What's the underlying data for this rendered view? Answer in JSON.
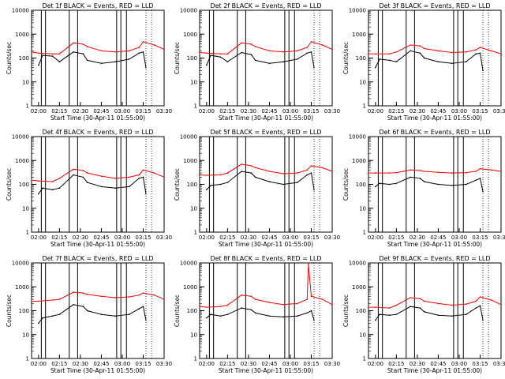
{
  "figure": {
    "background": "#ffffff",
    "events_color": "#000000",
    "lld_color": "#ff0000",
    "shared_x_label": "Start Time (30-Apr-11 01:55:00)",
    "shared_y_label": "Counts/sec"
  },
  "chart_data": [
    {
      "type": "line",
      "title": "Det 1f BLACK = Events, RED = LLD",
      "xlabel": "Start Time (30-Apr-11 01:55:00)",
      "ylabel": "Counts/sec",
      "x_tick_labels": [
        "02:00",
        "02:15",
        "02:30",
        "02:45",
        "03:00",
        "03:15",
        "03:30"
      ],
      "y_tick_labels": [
        "1",
        "10",
        "100",
        "1000",
        "10000"
      ],
      "xlim_minutes": [
        0,
        95
      ],
      "ylim": [
        1,
        10000
      ],
      "yscale": "log",
      "series": [
        {
          "name": "BLACK = Events",
          "x_minutes": [
            5,
            8,
            15,
            20,
            30,
            37,
            40,
            50,
            60,
            70,
            77,
            80,
            82
          ],
          "values": [
            50,
            130,
            120,
            70,
            180,
            150,
            80,
            60,
            70,
            90,
            160,
            180,
            40
          ]
        },
        {
          "name": "RED = LLD",
          "x_minutes": [
            0,
            5,
            15,
            20,
            30,
            37,
            40,
            50,
            60,
            70,
            77,
            80,
            88,
            95
          ],
          "values": [
            180,
            160,
            150,
            150,
            430,
            380,
            300,
            200,
            180,
            200,
            280,
            480,
            350,
            230
          ]
        }
      ],
      "vertical_lines_minutes": [
        7,
        10,
        27,
        33,
        61,
        64,
        68
      ]
    },
    {
      "type": "line",
      "title": "Det 2f BLACK = Events, RED = LLD",
      "xlabel": "Start Time (30-Apr-11 01:55:00)",
      "ylabel": "Counts/sec",
      "x_tick_labels": [
        "02:00",
        "02:15",
        "02:30",
        "02:45",
        "03:00",
        "03:15",
        "03:30"
      ],
      "y_tick_labels": [
        "1",
        "10",
        "100",
        "1000",
        "10000"
      ],
      "xlim_minutes": [
        0,
        95
      ],
      "ylim": [
        1,
        10000
      ],
      "yscale": "log",
      "series": [
        {
          "name": "BLACK = Events",
          "x_minutes": [
            5,
            8,
            15,
            20,
            30,
            37,
            40,
            50,
            60,
            70,
            77,
            80,
            82
          ],
          "values": [
            50,
            130,
            110,
            70,
            170,
            140,
            80,
            60,
            70,
            90,
            160,
            180,
            40
          ]
        },
        {
          "name": "RED = LLD",
          "x_minutes": [
            0,
            5,
            15,
            20,
            30,
            37,
            40,
            50,
            60,
            70,
            77,
            80,
            88,
            95
          ],
          "values": [
            170,
            160,
            150,
            150,
            430,
            380,
            300,
            200,
            180,
            200,
            280,
            480,
            350,
            230
          ]
        }
      ],
      "vertical_lines_minutes": [
        7,
        10,
        27,
        33,
        61,
        64,
        68
      ]
    },
    {
      "type": "line",
      "title": "Det 3f BLACK = Events, RED = LLD",
      "xlabel": "Start Time (30-Apr-11 01:55:00)",
      "ylabel": "Counts/sec",
      "x_tick_labels": [
        "02:00",
        "02:15",
        "02:30",
        "02:45",
        "03:00",
        "03:15",
        "03:30"
      ],
      "y_tick_labels": [
        "1",
        "10",
        "100",
        "1000",
        "10000"
      ],
      "xlim_minutes": [
        0,
        95
      ],
      "ylim": [
        1,
        10000
      ],
      "yscale": "log",
      "series": [
        {
          "name": "BLACK = Events",
          "x_minutes": [
            5,
            8,
            15,
            20,
            30,
            37,
            40,
            50,
            60,
            70,
            77,
            80,
            82
          ],
          "values": [
            40,
            90,
            80,
            70,
            200,
            160,
            100,
            70,
            60,
            70,
            150,
            160,
            30
          ]
        },
        {
          "name": "RED = LLD",
          "x_minutes": [
            0,
            5,
            15,
            20,
            30,
            37,
            40,
            50,
            60,
            70,
            77,
            80,
            88,
            95
          ],
          "values": [
            150,
            150,
            150,
            180,
            350,
            320,
            250,
            200,
            170,
            180,
            220,
            280,
            200,
            150
          ]
        }
      ],
      "vertical_lines_minutes": [
        7,
        10,
        27,
        33,
        61,
        64,
        68
      ]
    },
    {
      "type": "line",
      "title": "Det 4f BLACK = Events, RED = LLD",
      "xlabel": "Start Time (30-Apr-11 01:55:00)",
      "ylabel": "Counts/sec",
      "x_tick_labels": [
        "02:00",
        "02:15",
        "02:30",
        "02:45",
        "03:00",
        "03:15",
        "03:30"
      ],
      "y_tick_labels": [
        "1",
        "10",
        "100",
        "1000",
        "10000"
      ],
      "xlim_minutes": [
        0,
        95
      ],
      "ylim": [
        1,
        10000
      ],
      "yscale": "log",
      "series": [
        {
          "name": "BLACK = Events",
          "x_minutes": [
            5,
            8,
            15,
            20,
            30,
            37,
            40,
            50,
            60,
            70,
            77,
            80,
            82
          ],
          "values": [
            40,
            70,
            60,
            70,
            250,
            200,
            120,
            80,
            70,
            80,
            180,
            200,
            40
          ]
        },
        {
          "name": "RED = LLD",
          "x_minutes": [
            0,
            5,
            15,
            20,
            30,
            37,
            40,
            50,
            60,
            70,
            77,
            80,
            88,
            95
          ],
          "values": [
            150,
            140,
            130,
            180,
            430,
            380,
            300,
            220,
            180,
            200,
            250,
            400,
            300,
            200
          ]
        }
      ],
      "vertical_lines_minutes": [
        7,
        10,
        27,
        33,
        61,
        64,
        68
      ]
    },
    {
      "type": "line",
      "title": "Det 5f BLACK = Events, RED = LLD",
      "xlabel": "Start Time (30-Apr-11 01:55:00)",
      "ylabel": "Counts/sec",
      "x_tick_labels": [
        "02:00",
        "02:15",
        "02:30",
        "02:45",
        "03:00",
        "03:15",
        "03:30"
      ],
      "y_tick_labels": [
        "1",
        "10",
        "100",
        "1000",
        "10000"
      ],
      "xlim_minutes": [
        0,
        95
      ],
      "ylim": [
        1,
        10000
      ],
      "yscale": "log",
      "series": [
        {
          "name": "BLACK = Events",
          "x_minutes": [
            5,
            8,
            15,
            20,
            30,
            37,
            40,
            50,
            60,
            70,
            77,
            80,
            82
          ],
          "values": [
            60,
            90,
            100,
            120,
            350,
            300,
            200,
            130,
            100,
            120,
            250,
            300,
            60
          ]
        },
        {
          "name": "RED = LLD",
          "x_minutes": [
            0,
            5,
            15,
            20,
            30,
            37,
            40,
            50,
            60,
            70,
            77,
            80,
            88,
            95
          ],
          "values": [
            250,
            240,
            250,
            300,
            700,
            600,
            500,
            350,
            280,
            300,
            400,
            600,
            500,
            350
          ]
        }
      ],
      "vertical_lines_minutes": [
        7,
        10,
        27,
        33,
        61,
        64,
        68
      ]
    },
    {
      "type": "line",
      "title": "Det 6f BLACK = Events, RED = LLD",
      "xlabel": "Start Time (30-Apr-11 01:55:00)",
      "ylabel": "Counts/sec",
      "x_tick_labels": [
        "02:00",
        "02:15",
        "02:30",
        "02:45",
        "03:00",
        "03:15",
        "03:30"
      ],
      "y_tick_labels": [
        "1",
        "10",
        "100",
        "1000",
        "10000"
      ],
      "xlim_minutes": [
        0,
        95
      ],
      "ylim": [
        1,
        10000
      ],
      "yscale": "log",
      "series": [
        {
          "name": "BLACK = Events",
          "x_minutes": [
            5,
            8,
            15,
            20,
            30,
            37,
            40,
            50,
            60,
            70,
            77,
            80,
            82
          ],
          "values": [
            80,
            110,
            100,
            110,
            200,
            180,
            130,
            100,
            90,
            100,
            150,
            180,
            50
          ]
        },
        {
          "name": "RED = LLD",
          "x_minutes": [
            0,
            5,
            15,
            20,
            30,
            37,
            40,
            50,
            60,
            70,
            77,
            80,
            88,
            95
          ],
          "values": [
            300,
            300,
            300,
            310,
            400,
            380,
            350,
            320,
            300,
            310,
            350,
            450,
            400,
            350
          ]
        }
      ],
      "vertical_lines_minutes": [
        7,
        10,
        27,
        33,
        61,
        64,
        68
      ]
    },
    {
      "type": "line",
      "title": "Det 7f BLACK = Events, RED = LLD",
      "xlabel": "Start Time (30-Apr-11 01:55:00)",
      "ylabel": "Counts/sec",
      "x_tick_labels": [
        "02:00",
        "02:15",
        "02:30",
        "02:45",
        "03:00",
        "03:15",
        "03:30"
      ],
      "y_tick_labels": [
        "1",
        "10",
        "100",
        "1000",
        "10000"
      ],
      "xlim_minutes": [
        0,
        95
      ],
      "ylim": [
        1,
        10000
      ],
      "yscale": "log",
      "series": [
        {
          "name": "BLACK = Events",
          "x_minutes": [
            5,
            8,
            15,
            20,
            30,
            37,
            40,
            50,
            60,
            70,
            77,
            80,
            82
          ],
          "values": [
            30,
            50,
            60,
            70,
            180,
            150,
            100,
            70,
            60,
            70,
            120,
            150,
            40
          ]
        },
        {
          "name": "RED = LLD",
          "x_minutes": [
            0,
            5,
            15,
            20,
            30,
            37,
            40,
            50,
            60,
            70,
            77,
            80,
            88,
            95
          ],
          "values": [
            250,
            250,
            280,
            300,
            600,
            550,
            480,
            400,
            350,
            380,
            450,
            550,
            450,
            300
          ]
        }
      ],
      "vertical_lines_minutes": [
        7,
        10,
        27,
        33,
        61,
        64,
        68
      ]
    },
    {
      "type": "line",
      "title": "Det 8f BLACK = Events, RED = LLD",
      "xlabel": "Start Time (30-Apr-11 01:55:00)",
      "ylabel": "Counts/sec",
      "x_tick_labels": [
        "02:00",
        "02:15",
        "02:30",
        "02:45",
        "03:00",
        "03:15",
        "03:30"
      ],
      "y_tick_labels": [
        "1",
        "10",
        "100",
        "1000",
        "10000"
      ],
      "xlim_minutes": [
        0,
        95
      ],
      "ylim": [
        1,
        10000
      ],
      "yscale": "log",
      "series": [
        {
          "name": "BLACK = Events",
          "x_minutes": [
            5,
            8,
            15,
            20,
            30,
            37,
            40,
            50,
            60,
            70,
            77,
            80,
            82
          ],
          "values": [
            50,
            70,
            60,
            70,
            130,
            110,
            80,
            60,
            55,
            60,
            80,
            100,
            40
          ]
        },
        {
          "name": "RED = LLD",
          "x_minutes": [
            0,
            5,
            15,
            20,
            30,
            37,
            40,
            50,
            60,
            70,
            77,
            78,
            80,
            88,
            95
          ],
          "values": [
            150,
            140,
            150,
            170,
            450,
            400,
            300,
            220,
            180,
            200,
            300,
            9000,
            400,
            300,
            180
          ]
        }
      ],
      "vertical_lines_minutes": [
        7,
        10,
        27,
        33,
        61,
        64,
        68
      ]
    },
    {
      "type": "line",
      "title": "Det 9f BLACK = Events, RED = LLD",
      "xlabel": "Start Time (30-Apr-11 01:55:00)",
      "ylabel": "Counts/sec",
      "x_tick_labels": [
        "02:00",
        "02:15",
        "02:30",
        "02:45",
        "03:00",
        "03:15",
        "03:30"
      ],
      "y_tick_labels": [
        "1",
        "10",
        "100",
        "1000",
        "10000"
      ],
      "xlim_minutes": [
        0,
        95
      ],
      "ylim": [
        1,
        10000
      ],
      "yscale": "log",
      "series": [
        {
          "name": "BLACK = Events",
          "x_minutes": [
            5,
            8,
            15,
            20,
            30,
            37,
            40,
            50,
            60,
            70,
            77,
            80,
            82
          ],
          "values": [
            40,
            70,
            65,
            70,
            150,
            130,
            90,
            65,
            60,
            70,
            130,
            160,
            40
          ]
        },
        {
          "name": "RED = LLD",
          "x_minutes": [
            0,
            5,
            15,
            20,
            30,
            37,
            40,
            50,
            60,
            70,
            77,
            80,
            88,
            95
          ],
          "values": [
            140,
            140,
            130,
            170,
            350,
            320,
            250,
            200,
            170,
            190,
            250,
            380,
            280,
            180
          ]
        }
      ],
      "vertical_lines_minutes": [
        7,
        10,
        27,
        33,
        61,
        64,
        68
      ]
    }
  ]
}
